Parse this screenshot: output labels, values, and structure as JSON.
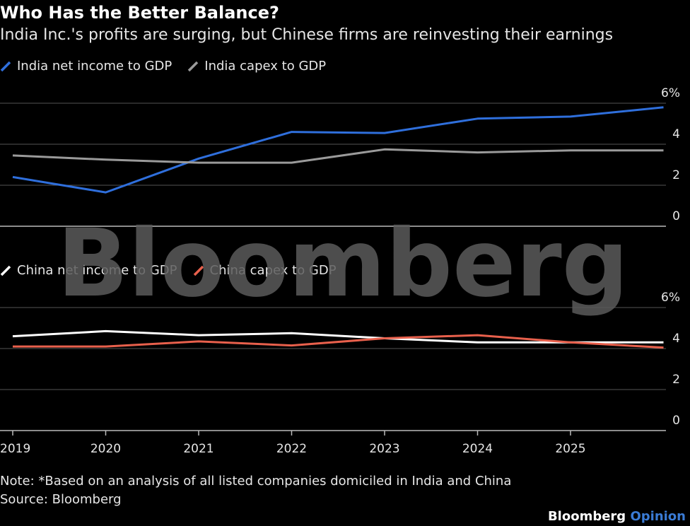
{
  "header": {
    "title": "Who Has the Better Balance?",
    "subtitle": "India Inc.'s profits are surging, but Chinese firms are reinvesting their earnings"
  },
  "watermark": "Bloomberg",
  "footer": {
    "note": "Note: *Based on an analysis of all listed companies domiciled in India and China",
    "source": "Source: Bloomberg",
    "brand_main": "Bloomberg",
    "brand_accent": "Opinion"
  },
  "colors": {
    "india_net": "#2f6fdc",
    "india_capex": "#9a9a9a",
    "china_net": "#ffffff",
    "china_capex": "#e8604c",
    "grid": "#555555",
    "baseline": "#bbbbbb"
  },
  "chart_data": [
    {
      "type": "line",
      "panel": "top",
      "x": [
        2019,
        2020,
        2021,
        2022,
        2023,
        2024,
        2025,
        2026
      ],
      "x_tick_labels": [
        "2019",
        "2020",
        "2021",
        "2022",
        "2023",
        "2024",
        "2025"
      ],
      "y_ticks": [
        "6%",
        "4",
        "2",
        "0"
      ],
      "ylim": [
        0,
        6
      ],
      "grid": true,
      "legend_position": "top-left",
      "series": [
        {
          "name": "India net income to GDP",
          "color_key": "india_net",
          "values": [
            2.4,
            1.65,
            3.3,
            4.6,
            4.55,
            5.25,
            5.35,
            5.8
          ]
        },
        {
          "name": "India capex to GDP",
          "color_key": "india_capex",
          "values": [
            3.45,
            3.25,
            3.1,
            3.1,
            3.75,
            3.6,
            3.7,
            3.7
          ]
        }
      ]
    },
    {
      "type": "line",
      "panel": "bottom",
      "x": [
        2019,
        2020,
        2021,
        2022,
        2023,
        2024,
        2025,
        2026
      ],
      "x_tick_labels": [
        "2019",
        "2020",
        "2021",
        "2022",
        "2023",
        "2024",
        "2025"
      ],
      "y_ticks": [
        "6%",
        "4",
        "2",
        "0"
      ],
      "ylim": [
        0,
        6
      ],
      "grid": true,
      "legend_position": "top-left",
      "series": [
        {
          "name": "China net income to GDP",
          "color_key": "china_net",
          "values": [
            4.6,
            4.85,
            4.65,
            4.75,
            4.5,
            4.3,
            4.3,
            4.3
          ]
        },
        {
          "name": "China capex to GDP",
          "color_key": "china_capex",
          "values": [
            4.1,
            4.1,
            4.35,
            4.15,
            4.5,
            4.65,
            4.3,
            4.05
          ]
        }
      ]
    }
  ]
}
